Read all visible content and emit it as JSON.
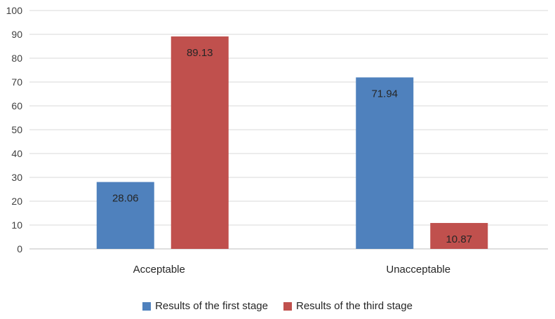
{
  "chart_data": {
    "type": "bar",
    "title": "",
    "xlabel": "",
    "ylabel": "",
    "ylim": [
      0,
      100
    ],
    "yticks": [
      0,
      10,
      20,
      30,
      40,
      50,
      60,
      70,
      80,
      90,
      100
    ],
    "grid": true,
    "legend_position": "bottom",
    "categories": [
      "Acceptable",
      "Unacceptable"
    ],
    "series": [
      {
        "name": "Results of the first stage",
        "color": "#4f81bd",
        "values": [
          28.06,
          71.94
        ],
        "labels": [
          "28.06",
          "71.94"
        ]
      },
      {
        "name": "Results of the third stage",
        "color": "#c0504d",
        "values": [
          89.13,
          10.87
        ],
        "labels": [
          "89.13",
          "10.87"
        ]
      }
    ]
  }
}
